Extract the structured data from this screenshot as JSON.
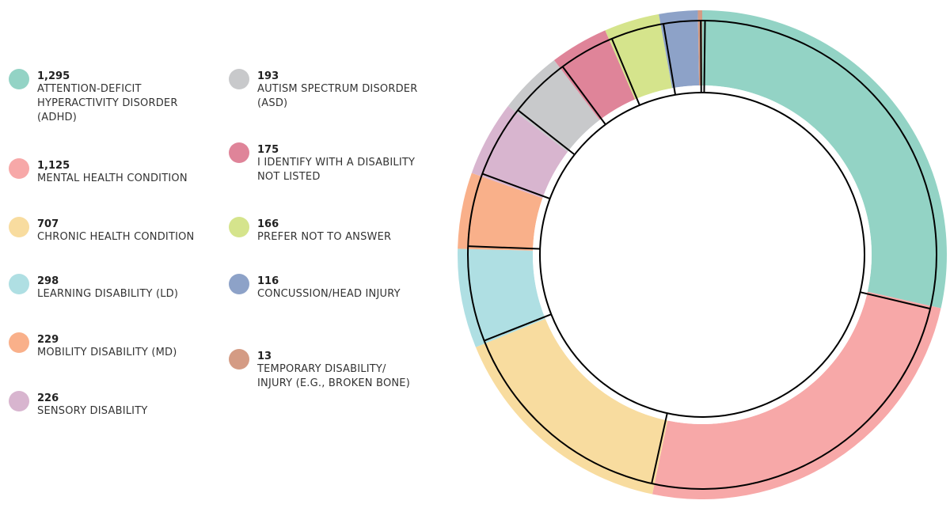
{
  "chart_data": {
    "type": "donut",
    "categories": [
      "ATTENTION-DEFICIT HYPERACTIVITY DISORDER (ADHD)",
      "MENTAL HEALTH CONDITION",
      "CHRONIC HEALTH CONDITION",
      "LEARNING DISABILITY (LD)",
      "MOBILITY DISABILITY (MD)",
      "SENSORY DISABILITY",
      "AUTISM SPECTRUM DISORDER (ASD)",
      "I IDENTIFY WITH A DISABILITY NOT LISTED",
      "PREFER NOT TO ANSWER",
      "CONCUSSION/HEAD INJURY",
      "TEMPORARY DISABILITY/ INJURY (E.G., BROKEN BONE)"
    ],
    "values": [
      1295,
      1125,
      707,
      298,
      229,
      226,
      193,
      175,
      166,
      116,
      13
    ],
    "value_labels": [
      "1,295",
      "1,125",
      "707",
      "298",
      "229",
      "226",
      "193",
      "175",
      "166",
      "116",
      "13"
    ],
    "colors": [
      "#93d3c5",
      "#f7a8a8",
      "#f8dc9f",
      "#afdfe3",
      "#f9b08a",
      "#d8b5cf",
      "#c8c9cb",
      "#df8499",
      "#d5e48c",
      "#8da2c8",
      "#d49b84"
    ]
  }
}
